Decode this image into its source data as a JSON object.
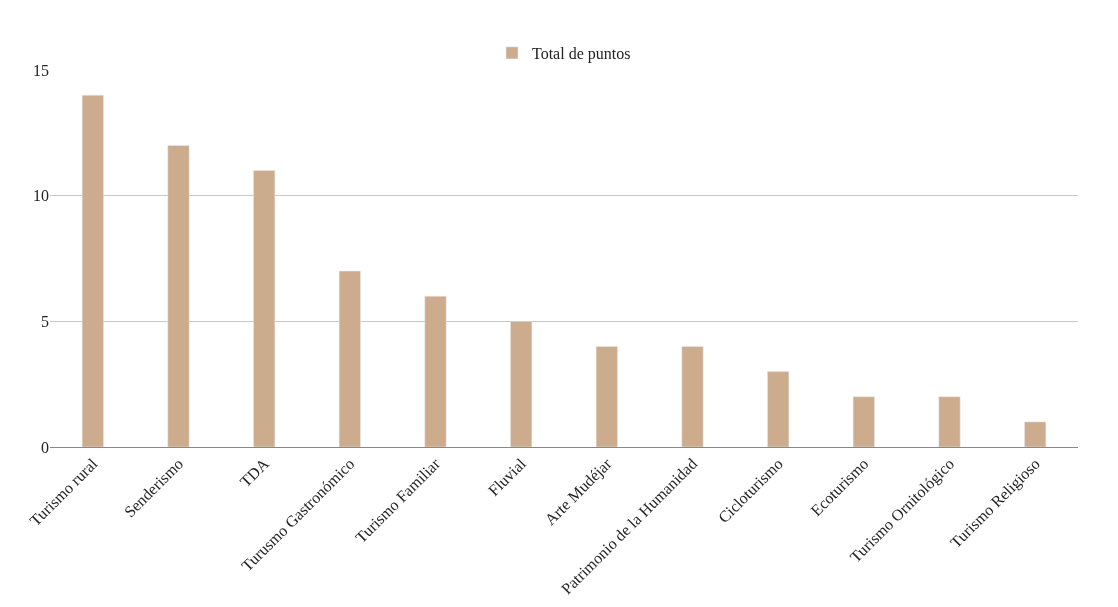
{
  "chart_data": {
    "type": "bar",
    "categories": [
      "Turismo rural",
      "Senderismo",
      "TDA",
      "Turusmo Gastronómico",
      "Turismo Familiar",
      "Fluvial",
      "Arte Mudéjar",
      "Patrimonio de la Humanidad",
      "Cicloturismo",
      "Ecoturismo",
      "Turismo Ornitológico",
      "Turismo Religioso"
    ],
    "series": [
      {
        "name": "Total de puntos",
        "color": "#ccac8c",
        "values": [
          14,
          12,
          11,
          7,
          6,
          5,
          4,
          4,
          3,
          2,
          2,
          1
        ]
      }
    ],
    "ylim": [
      0,
      15
    ],
    "yticks": [
      0,
      5,
      10,
      15
    ],
    "grid": "y",
    "legend": "top"
  }
}
